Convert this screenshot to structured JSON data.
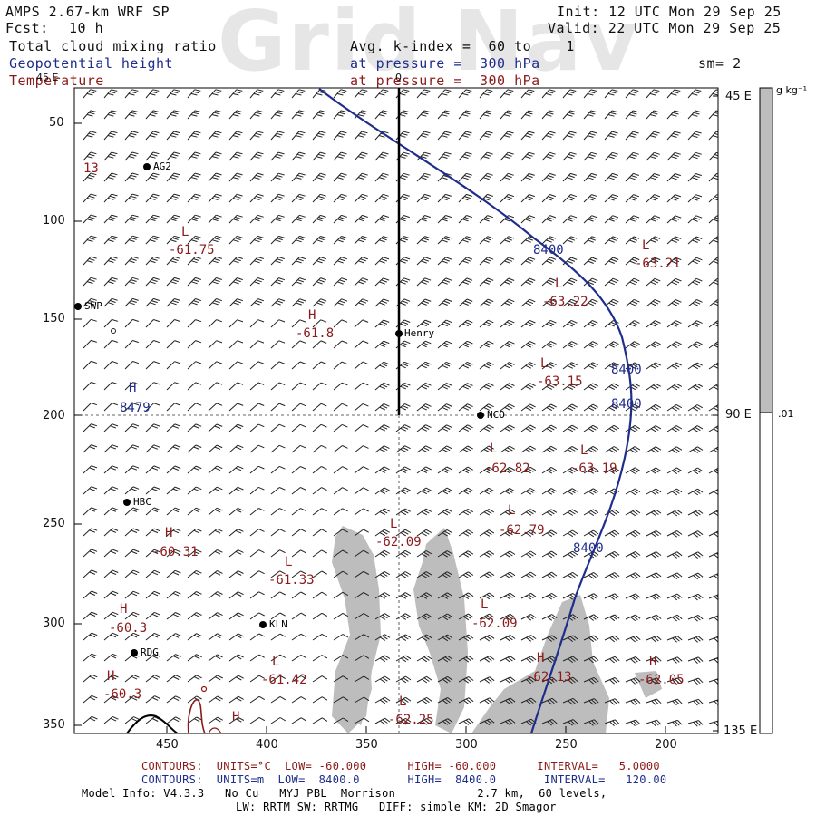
{
  "watermark": "Grid Nav",
  "header": {
    "model": "AMPS 2.67-km WRF SP",
    "fcst_label": "Fcst:",
    "fcst_value": "10 h",
    "init": "Init: 12 UTC Mon 29 Sep 25",
    "valid": "Valid: 22 UTC Mon 29 Sep 25",
    "field_cloud": "Total cloud mixing ratio",
    "field_geo": "Geopotential height",
    "field_temp": "Temperature",
    "avg_line": "Avg. k-index =  60 to    1",
    "pressure_geo": "at pressure =  300 hPa",
    "pressure_temp": "at pressure =  300 hPa",
    "sm": "sm= 2"
  },
  "colorbar": {
    "unit": "g kg⁻¹",
    "value_label": ".01"
  },
  "y_ticks": [
    "50",
    "100",
    "150",
    "200",
    "250",
    "300",
    "350"
  ],
  "x_ticks": [
    "450",
    "400",
    "350",
    "300",
    "250",
    "200"
  ],
  "right_ticks": [
    "45 E",
    "90 E",
    "135 E"
  ],
  "top_left_tick": "45 E",
  "top_mid_tick": "0",
  "stations": [
    {
      "name": "AG2"
    },
    {
      "name": "SWP"
    },
    {
      "name": "Henry"
    },
    {
      "name": "NCO"
    },
    {
      "name": "HBC"
    },
    {
      "name": "KLN"
    },
    {
      "name": "RDG"
    }
  ],
  "temp_labels": [
    {
      "kind": "L",
      "value": "-61.75"
    },
    {
      "kind": "L",
      "value": "-63.21"
    },
    {
      "kind": "L",
      "value": "-63.22"
    },
    {
      "kind": "H",
      "value": "-61.8"
    },
    {
      "kind": "L",
      "value": "-63.15"
    },
    {
      "kind": "L",
      "value": "-62.82"
    },
    {
      "kind": "L",
      "value": "-63.19"
    },
    {
      "kind": "L",
      "value": "-62.79"
    },
    {
      "kind": "L",
      "value": "-62.09"
    },
    {
      "kind": "H",
      "value": "-60.31"
    },
    {
      "kind": "L",
      "value": "-61.33"
    },
    {
      "kind": "L",
      "value": "-62.09"
    },
    {
      "kind": "H",
      "value": "-60.3"
    },
    {
      "kind": "L",
      "value": "-61.42"
    },
    {
      "kind": "H",
      "value": "-62.13"
    },
    {
      "kind": "H",
      "value": "-62.05"
    },
    {
      "kind": "H",
      "value": "-60.3"
    },
    {
      "kind": "L",
      "value": "-62.25"
    }
  ],
  "left_edge_label": "13",
  "height_labels": [
    "8400",
    "8400",
    "8400",
    "8400",
    "8479"
  ],
  "height_high_label": "H",
  "small_h": "H",
  "footer": {
    "red_line": "CONTOURS:  UNITS=°C  LOW= -60.000      HIGH= -60.000      INTERVAL=   5.0000",
    "blue_line": "CONTOURS:  UNITS=m  LOW=  8400.0       HIGH=  8400.0       INTERVAL=   120.00",
    "model_info": "Model Info: V4.3.3   No Cu   MYJ PBL  Morrison            2.7 km,  60 levels,",
    "physics": "LW: RRTM SW: RRTMG   DIFF: simple KM: 2D Smagor"
  },
  "colors": {
    "temperature": "#8b1a1a",
    "height": "#1f2d8c",
    "cloud": "#bdbdbd"
  }
}
